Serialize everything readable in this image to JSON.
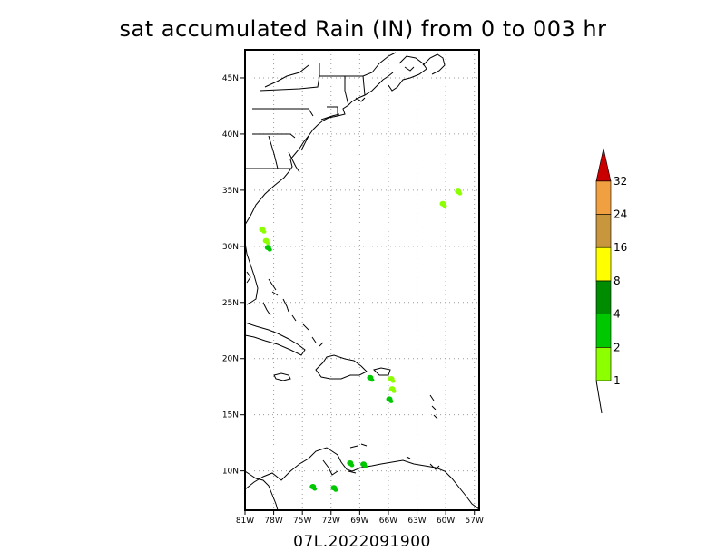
{
  "title": "sat accumulated Rain (IN) from 0 to 003 hr",
  "footer": "07L.2022091900",
  "map": {
    "lon_range": [
      -81,
      -56.5
    ],
    "lat_range": [
      6.5,
      47.5
    ],
    "lat_ticks": [
      {
        "value": 45,
        "label": "45N"
      },
      {
        "value": 40,
        "label": "40N"
      },
      {
        "value": 35,
        "label": "35N"
      },
      {
        "value": 30,
        "label": "30N"
      },
      {
        "value": 25,
        "label": "25N"
      },
      {
        "value": 20,
        "label": "20N"
      },
      {
        "value": 15,
        "label": "15N"
      },
      {
        "value": 10,
        "label": "10N"
      }
    ],
    "lon_ticks": [
      {
        "value": -81,
        "label": "81W"
      },
      {
        "value": -78,
        "label": "78W"
      },
      {
        "value": -75,
        "label": "75W"
      },
      {
        "value": -72,
        "label": "72W"
      },
      {
        "value": -69,
        "label": "69W"
      },
      {
        "value": -66,
        "label": "66W"
      },
      {
        "value": -63,
        "label": "63W"
      },
      {
        "value": -60,
        "label": "60W"
      },
      {
        "value": -57,
        "label": "57W"
      }
    ],
    "rain_areas": [
      {
        "name": "near-florida-1",
        "lon": -79.2,
        "lat": 31.5,
        "level": 1
      },
      {
        "name": "near-florida-2",
        "lon": -78.8,
        "lat": 30.5,
        "level": 1
      },
      {
        "name": "near-florida-3",
        "lon": -78.6,
        "lat": 29.9,
        "level": 2
      },
      {
        "name": "near-bermuda-1",
        "lon": -60.3,
        "lat": 33.8,
        "level": 1
      },
      {
        "name": "near-bermuda-2",
        "lon": -58.7,
        "lat": 34.9,
        "level": 1
      },
      {
        "name": "mona-passage",
        "lon": -67.9,
        "lat": 18.3,
        "level": 2
      },
      {
        "name": "puerto-rico-east",
        "lon": -65.7,
        "lat": 18.2,
        "level": 1
      },
      {
        "name": "caribbean-band-1",
        "lon": -65.6,
        "lat": 17.3,
        "level": 1
      },
      {
        "name": "caribbean-band-2",
        "lon": -65.9,
        "lat": 16.4,
        "level": 2
      },
      {
        "name": "venezuela-1",
        "lon": -73.9,
        "lat": 8.6,
        "level": 2
      },
      {
        "name": "venezuela-2",
        "lon": -71.7,
        "lat": 8.5,
        "level": 2
      },
      {
        "name": "venezuela-3",
        "lon": -70.0,
        "lat": 10.7,
        "level": 2
      },
      {
        "name": "venezuela-4",
        "lon": -68.6,
        "lat": 10.6,
        "level": 2
      }
    ]
  },
  "colorbar": {
    "colors": [
      "#8cff00",
      "#00c800",
      "#008c00",
      "#ffff00",
      "#c8963c",
      "#f0a040",
      "#c80000"
    ],
    "labels": [
      "1",
      "2",
      "4",
      "8",
      "16",
      "24",
      "32"
    ]
  }
}
